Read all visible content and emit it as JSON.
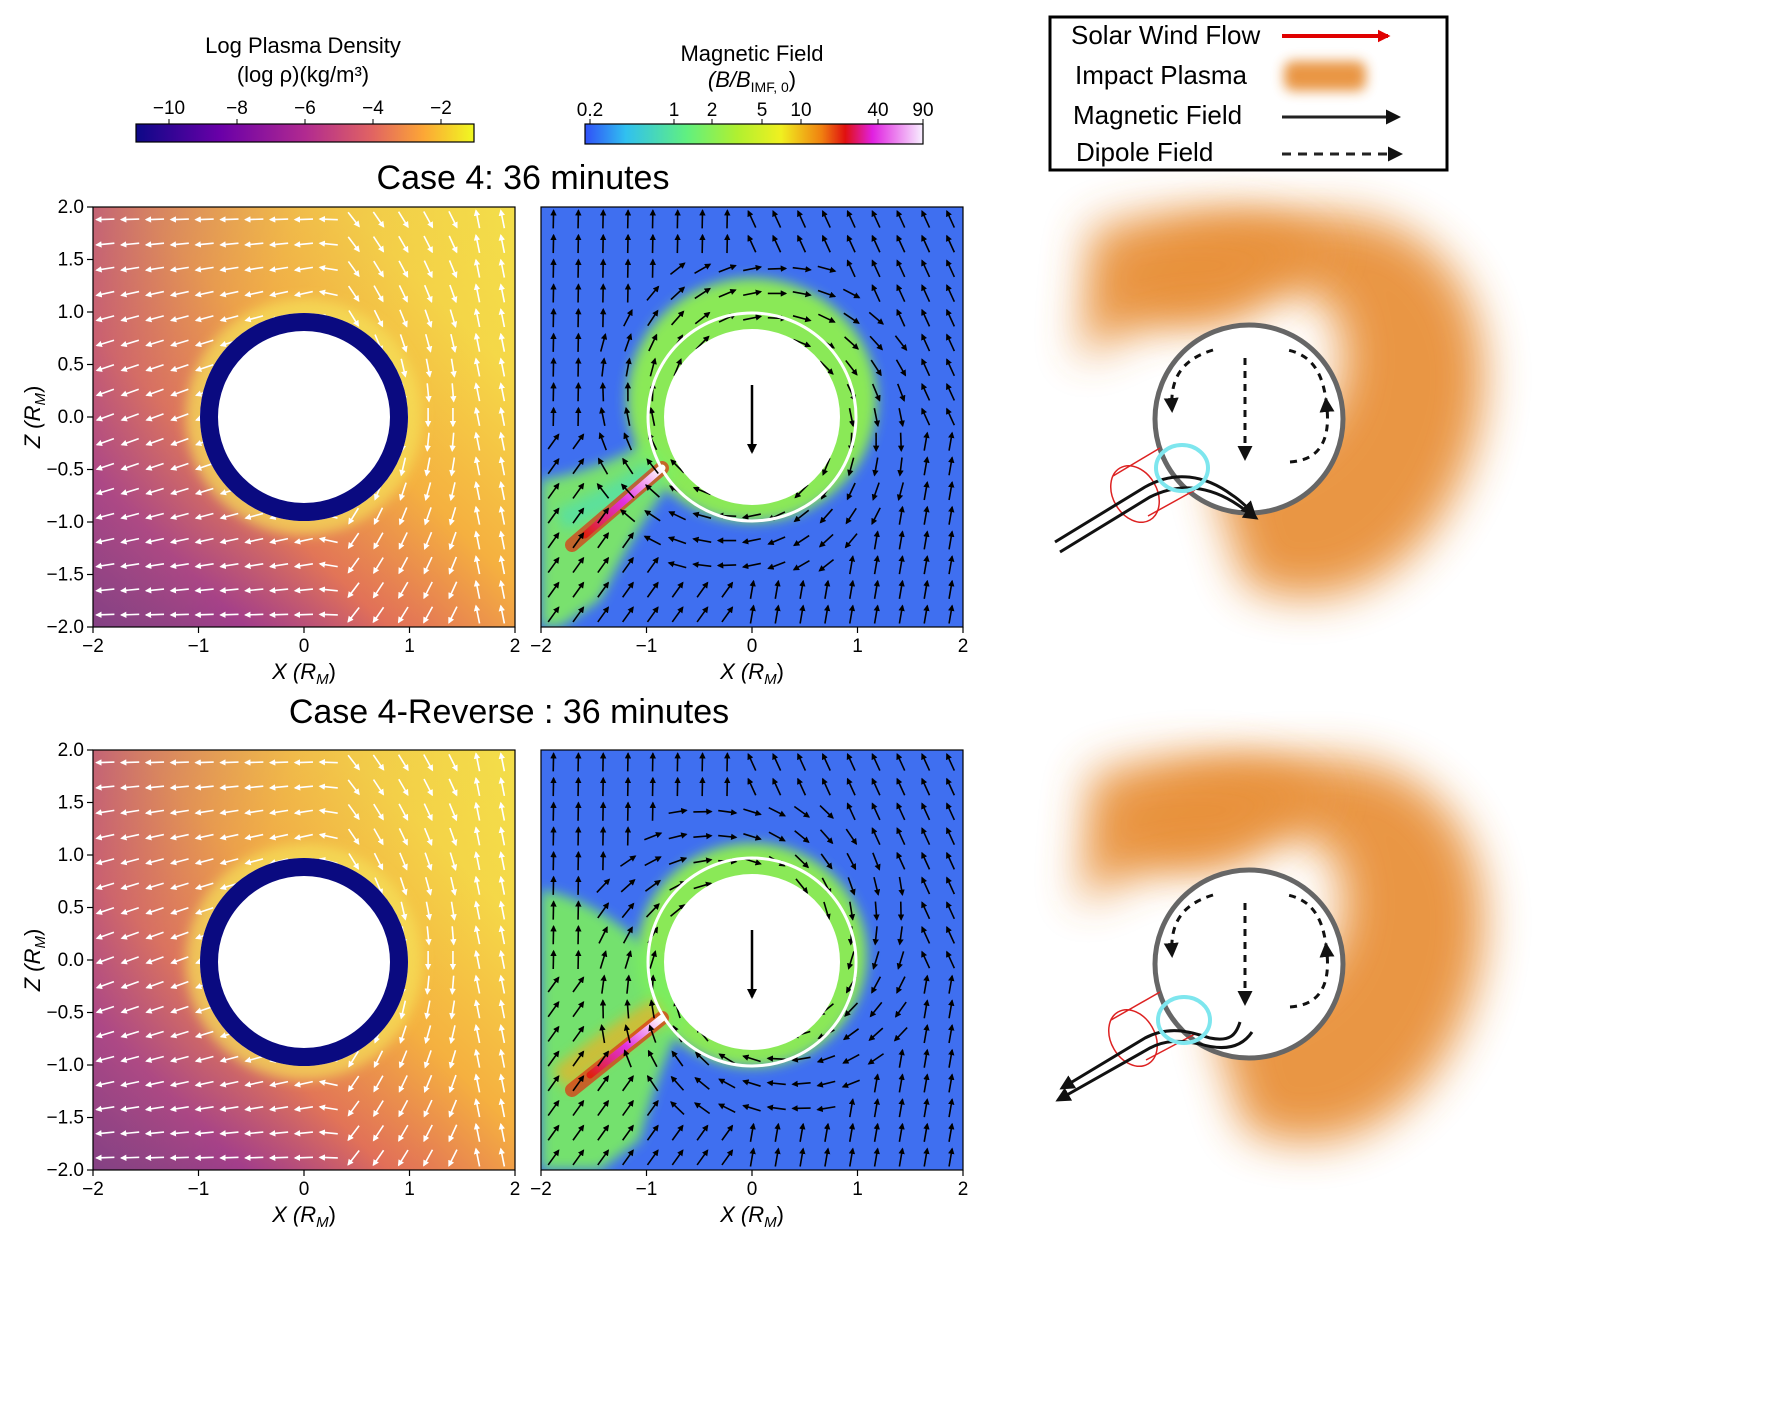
{
  "colorbars": {
    "density": {
      "title_line1": "Log Plasma Density",
      "title_line2": "(log ρ)(kg/m³)",
      "ticks": [
        "−10",
        "−8",
        "−6",
        "−4",
        "−2"
      ]
    },
    "magnetic": {
      "title_line1": "Magnetic Field",
      "title_line2": "(B/B",
      "title_sub": "IMF, 0",
      "title_close": ")",
      "ticks": [
        "0.2",
        "1",
        "2",
        "5",
        "10",
        "40",
        "90"
      ]
    }
  },
  "legend": {
    "items": [
      "Solar Wind Flow",
      "Impact Plasma",
      "Magnetic Field",
      "Dipole Field"
    ],
    "colors": {
      "solar_wind": "#e00000",
      "impact_plasma": "#e8913a",
      "magnetic": "#222222"
    }
  },
  "panels": {
    "top_title": "Case 4: 36 minutes",
    "bottom_title": "Case 4-Reverse : 36 minutes",
    "y_label": "Z (R",
    "y_label_sub": "M",
    "x_label": "X (R",
    "x_label_sub": "M",
    "y_ticks": [
      "2.0",
      "1.5",
      "1.0",
      "0.5",
      "0.0",
      "−0.5",
      "−1.0",
      "−1.5",
      "−2.0"
    ],
    "x_ticks": [
      "−2",
      "−1",
      "0",
      "1",
      "2"
    ]
  },
  "colors": {
    "density_dark": "#0a0a80",
    "field_blue": "#3f6ff0",
    "field_green": "#88ee44",
    "impact_circle": "#7ee6ee",
    "cylinder": "#d22"
  }
}
